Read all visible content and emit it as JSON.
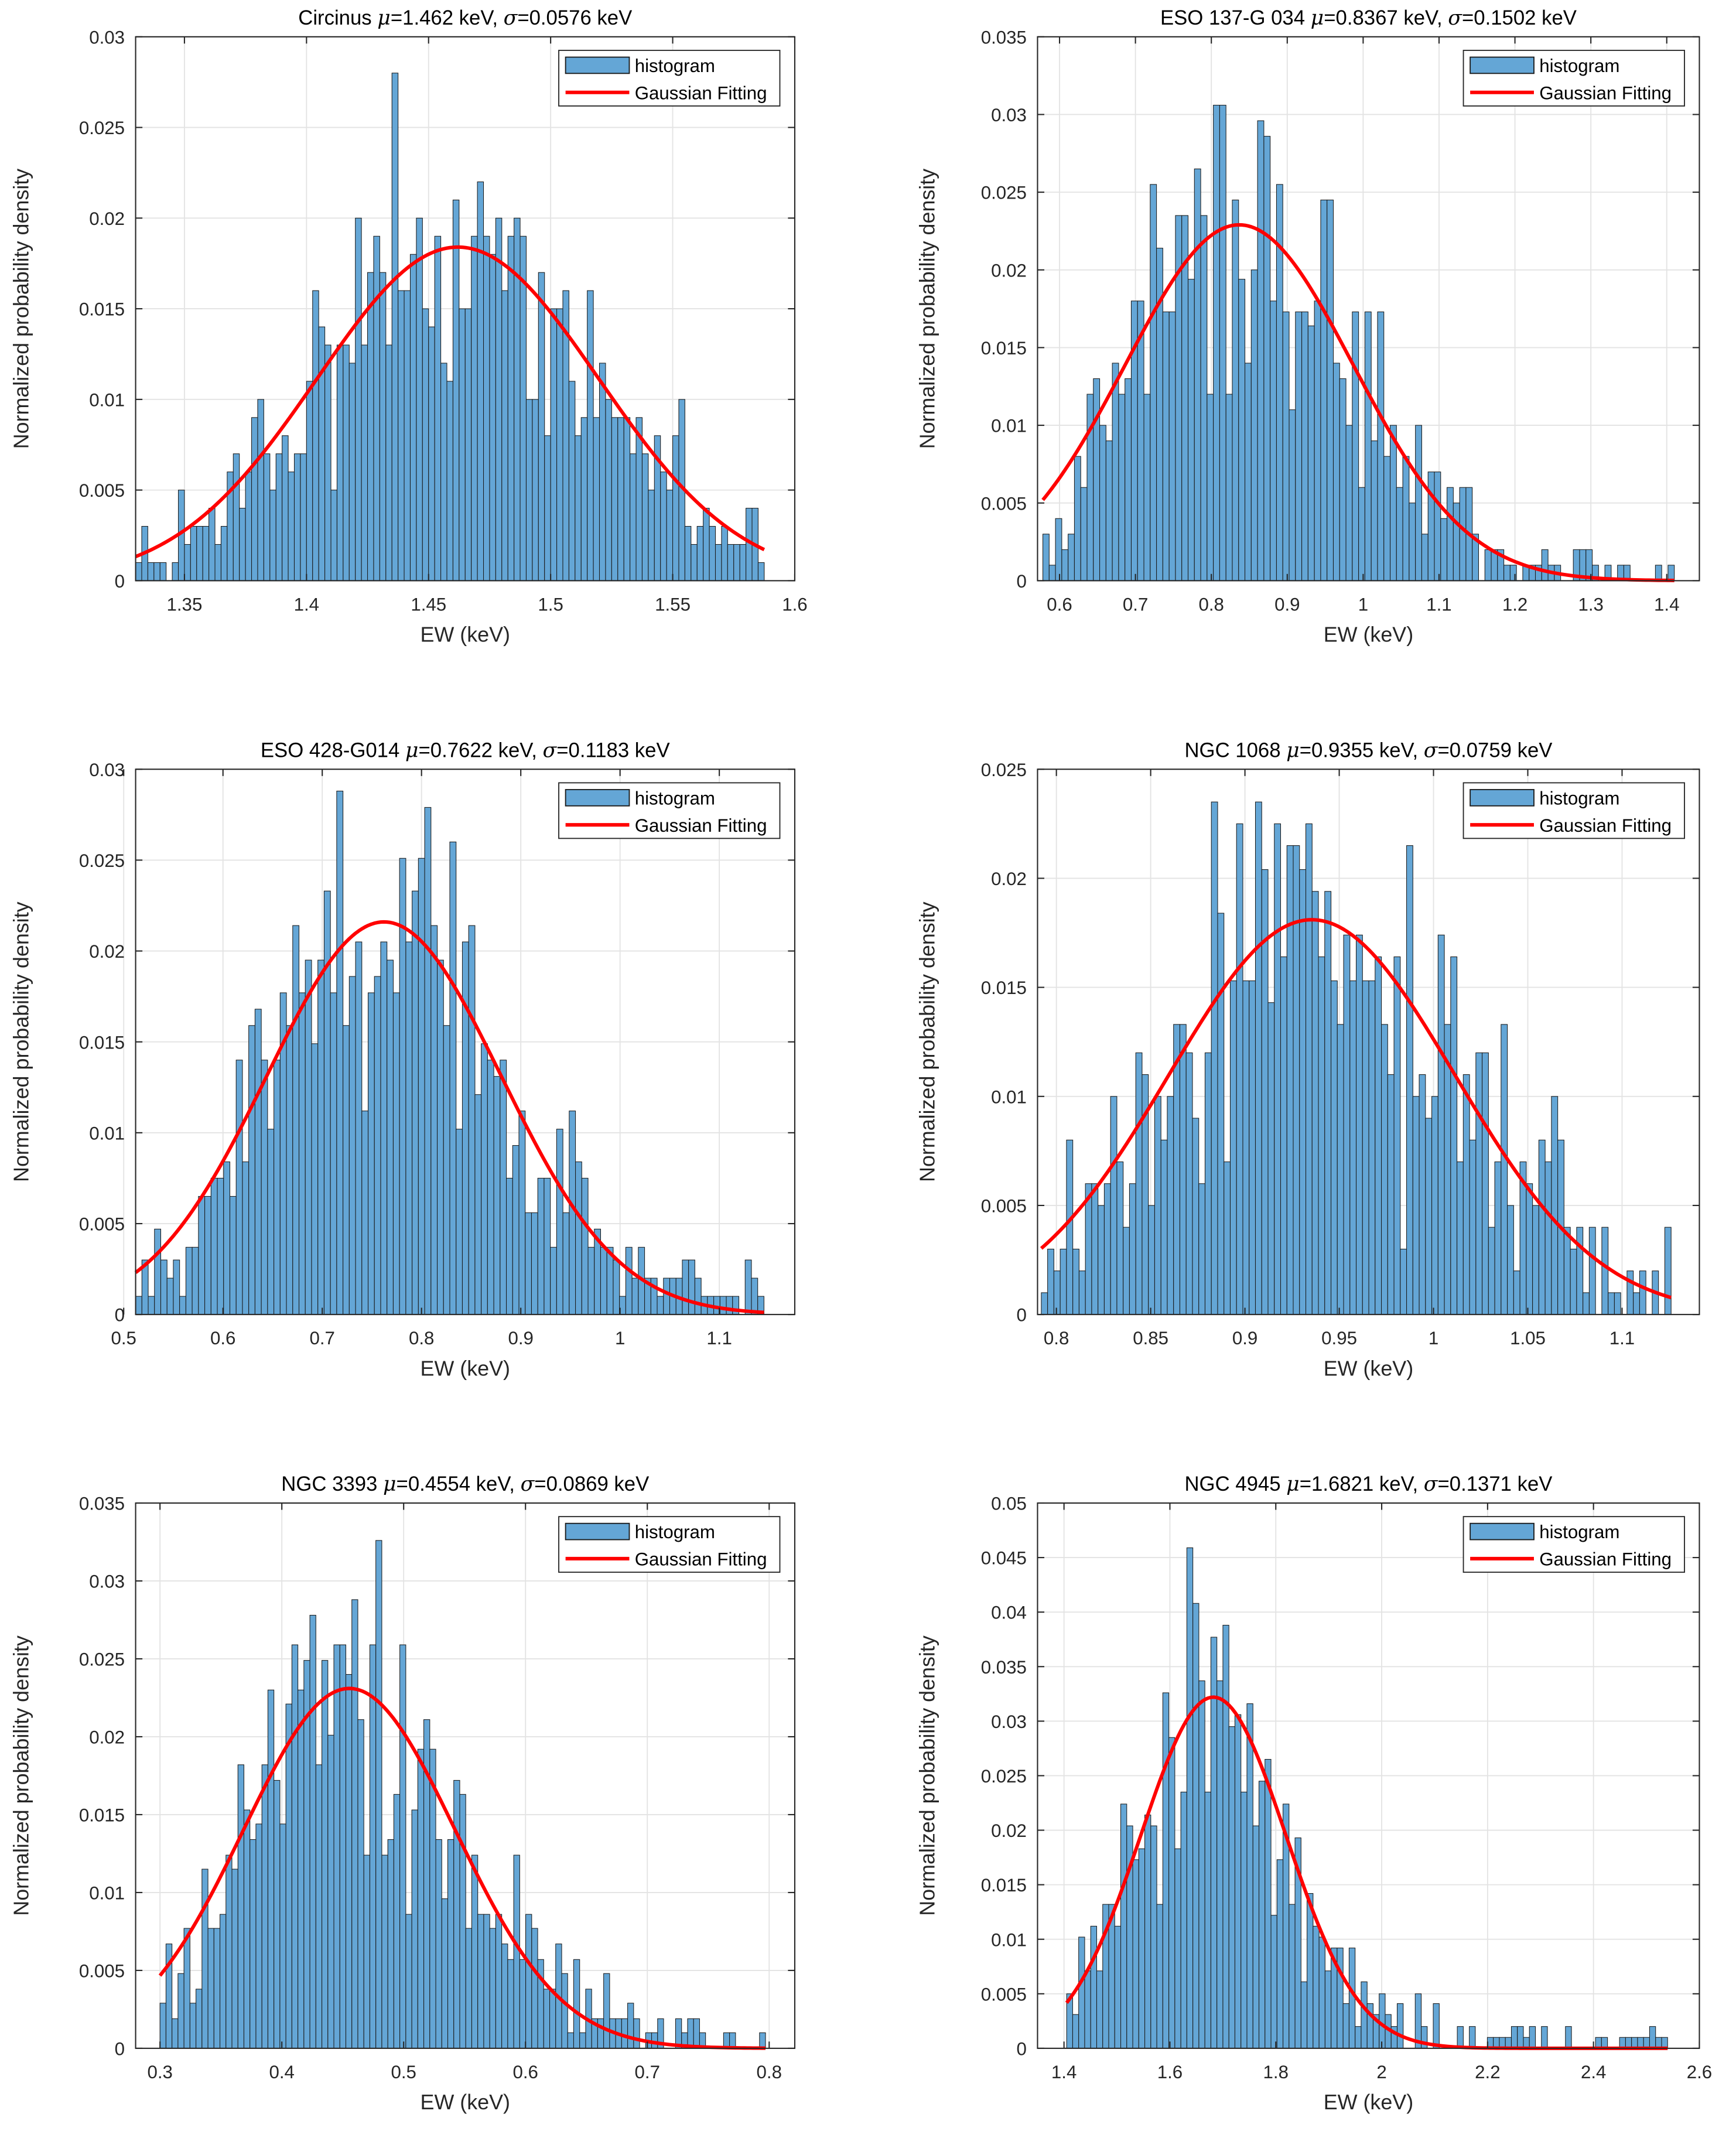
{
  "chart_data": [
    {
      "type": "bar",
      "title_parts": [
        "Circinus ",
        "μ",
        "=1.462 keV, ",
        "σ",
        "=0.0576 keV"
      ],
      "mu": 1.462,
      "sigma": 0.0576,
      "fit_peak": 0.0184,
      "xlabel": "EW (keV)",
      "ylabel": "Normalized probability density",
      "xlim": [
        1.33,
        1.6
      ],
      "ylim": [
        0,
        0.03
      ],
      "xticks": [
        "1.35",
        "1.4",
        "1.45",
        "1.5",
        "1.55",
        "1.6"
      ],
      "yticks": [
        "0",
        "0.005",
        "0.01",
        "0.015",
        "0.02",
        "0.025",
        "0.03"
      ],
      "legend": [
        "histogram",
        "Gaussian Fitting"
      ],
      "legend_position": "top-right",
      "grid": true,
      "bin_start": 1.33,
      "bin_end": 1.5875,
      "values": [
        0.001,
        0.003,
        0.001,
        0.001,
        0.001,
        0,
        0.001,
        0.005,
        0.002,
        0.003,
        0.003,
        0.003,
        0.004,
        0.002,
        0.003,
        0.006,
        0.007,
        0.004,
        0.006,
        0.009,
        0.01,
        0.007,
        0.005,
        0.007,
        0.008,
        0.006,
        0.007,
        0.007,
        0.011,
        0.016,
        0.014,
        0.013,
        0.005,
        0.013,
        0.013,
        0.012,
        0.02,
        0.013,
        0.017,
        0.019,
        0.017,
        0.013,
        0.028,
        0.016,
        0.016,
        0.018,
        0.02,
        0.015,
        0.014,
        0.019,
        0.012,
        0.011,
        0.021,
        0.015,
        0.015,
        0.019,
        0.022,
        0.019,
        0.018,
        0.02,
        0.016,
        0.019,
        0.02,
        0.019,
        0.01,
        0.01,
        0.017,
        0.008,
        0.015,
        0.015,
        0.016,
        0.011,
        0.008,
        0.009,
        0.016,
        0.009,
        0.012,
        0.01,
        0.009,
        0.009,
        0.009,
        0.007,
        0.009,
        0.007,
        0.005,
        0.008,
        0.006,
        0.005,
        0.008,
        0.01,
        0.003,
        0.002,
        0.003,
        0.004,
        0.003,
        0.002,
        0.003,
        0.002,
        0.002,
        0.002,
        0.004,
        0.004,
        0.001
      ]
    },
    {
      "type": "bar",
      "title_parts": [
        "ESO 137-G 034 ",
        "μ",
        "=0.8367 keV, ",
        "σ",
        "=0.1502 keV"
      ],
      "mu": 0.8367,
      "sigma": 0.1502,
      "fit_peak": 0.0229,
      "xlabel": "EW (keV)",
      "ylabel": "Normalized probability density",
      "xlim": [
        0.571,
        1.443
      ],
      "ylim": [
        0,
        0.035
      ],
      "xticks": [
        "0.6",
        "0.7",
        "0.8",
        "0.9",
        "1",
        "1.1",
        "1.2",
        "1.3",
        "1.4"
      ],
      "yticks": [
        "0",
        "0.005",
        "0.01",
        "0.015",
        "0.02",
        "0.025",
        "0.03",
        "0.035"
      ],
      "legend": [
        "histogram",
        "Gaussian Fitting"
      ],
      "legend_position": "top-right",
      "grid": true,
      "bin_start": 0.578,
      "bin_end": 1.41,
      "values": [
        0.003,
        0.001,
        0.004,
        0.002,
        0.003,
        0.008,
        0.006,
        0.012,
        0.013,
        0.01,
        0.009,
        0.014,
        0.012,
        0.013,
        0.018,
        0.018,
        0.012,
        0.0255,
        0.0214,
        0.0173,
        0.0173,
        0.0235,
        0.0235,
        0.0194,
        0.0265,
        0.0235,
        0.012,
        0.0306,
        0.0306,
        0.012,
        0.0245,
        0.0194,
        0.014,
        0.02,
        0.0296,
        0.0286,
        0.018,
        0.0255,
        0.0173,
        0.011,
        0.0173,
        0.0173,
        0.0164,
        0.018,
        0.0245,
        0.0245,
        0.014,
        0.013,
        0.01,
        0.0173,
        0.006,
        0.0173,
        0.009,
        0.0173,
        0.008,
        0.01,
        0.006,
        0.008,
        0.005,
        0.01,
        0.003,
        0.007,
        0.007,
        0.004,
        0.006,
        0.005,
        0.006,
        0.006,
        0.003,
        0,
        0.002,
        0.002,
        0.002,
        0.001,
        0.001,
        0,
        0.001,
        0.001,
        0.001,
        0.002,
        0.001,
        0.001,
        0,
        0,
        0.002,
        0.002,
        0.002,
        0.001,
        0,
        0.001,
        0,
        0.001,
        0.001,
        0,
        0,
        0,
        0,
        0.001,
        0,
        0.001
      ]
    },
    {
      "type": "bar",
      "title_parts": [
        "ESO 428-G014 ",
        "μ",
        "=0.7622 keV, ",
        "σ",
        "=0.1183 keV"
      ],
      "mu": 0.7622,
      "sigma": 0.1183,
      "fit_peak": 0.0216,
      "xlabel": "EW (keV)",
      "ylabel": "Normalized probability density",
      "xlim": [
        0.512,
        1.176
      ],
      "ylim": [
        0,
        0.03
      ],
      "xticks": [
        "0.5",
        "0.6",
        "0.7",
        "0.8",
        "0.9",
        "1",
        "1.1"
      ],
      "yticks": [
        "0",
        "0.005",
        "0.01",
        "0.015",
        "0.02",
        "0.025",
        "0.03"
      ],
      "legend": [
        "histogram",
        "Gaussian Fitting"
      ],
      "legend_position": "top-right",
      "grid": true,
      "bin_start": 0.512,
      "bin_end": 1.145,
      "values": [
        0.001,
        0.003,
        0.001,
        0.0047,
        0.003,
        0.002,
        0.003,
        0.001,
        0.0037,
        0.0037,
        0.0065,
        0.0065,
        0.0075,
        0.0075,
        0.0084,
        0.0065,
        0.014,
        0.0084,
        0.0159,
        0.0168,
        0.014,
        0.0102,
        0.014,
        0.0177,
        0.0159,
        0.0214,
        0.0177,
        0.0195,
        0.0149,
        0.0195,
        0.0233,
        0.0177,
        0.0288,
        0.0159,
        0.0186,
        0.0205,
        0.0112,
        0.0177,
        0.0186,
        0.0205,
        0.0195,
        0.0177,
        0.0251,
        0.0205,
        0.0233,
        0.0251,
        0.0279,
        0.0214,
        0.0195,
        0.0159,
        0.026,
        0.0102,
        0.0205,
        0.0214,
        0.0121,
        0.0149,
        0.014,
        0.0131,
        0.014,
        0.0075,
        0.0093,
        0.0112,
        0.0056,
        0.0056,
        0.0075,
        0.0075,
        0.0037,
        0.0102,
        0.0056,
        0.0112,
        0.0084,
        0.0075,
        0.0037,
        0.0047,
        0.0037,
        0.0037,
        0.003,
        0.001,
        0.0037,
        0.002,
        0.0037,
        0.002,
        0.002,
        0.001,
        0.002,
        0.002,
        0.002,
        0.003,
        0.003,
        0.002,
        0.001,
        0.001,
        0.001,
        0.001,
        0.001,
        0.001,
        0,
        0.003,
        0.002,
        0.001
      ]
    },
    {
      "type": "bar",
      "title_parts": [
        "NGC 1068 ",
        "μ",
        "=0.9355 keV, ",
        "σ",
        "=0.0759 keV"
      ],
      "mu": 0.9355,
      "sigma": 0.0759,
      "fit_peak": 0.0181,
      "xlabel": "EW (keV)",
      "ylabel": "Normalized probability density",
      "xlim": [
        0.79,
        1.141
      ],
      "ylim": [
        0,
        0.025
      ],
      "xticks": [
        "0.8",
        "0.85",
        "0.9",
        "0.95",
        "1",
        "1.05",
        "1.1"
      ],
      "yticks": [
        "0",
        "0.005",
        "0.01",
        "0.015",
        "0.02",
        "0.025"
      ],
      "legend": [
        "histogram",
        "Gaussian Fitting"
      ],
      "legend_position": "top-right",
      "grid": true,
      "bin_start": 0.792,
      "bin_end": 1.126,
      "values": [
        0.001,
        0.003,
        0.002,
        0.003,
        0.008,
        0.003,
        0.002,
        0.006,
        0.006,
        0.005,
        0.006,
        0.01,
        0.007,
        0.004,
        0.006,
        0.012,
        0.011,
        0.005,
        0.01,
        0.008,
        0.01,
        0.0133,
        0.0133,
        0.012,
        0.009,
        0.006,
        0.012,
        0.0235,
        0.0184,
        0.007,
        0.0153,
        0.0225,
        0.0153,
        0.0153,
        0.0235,
        0.0204,
        0.0143,
        0.0225,
        0.0164,
        0.0215,
        0.0215,
        0.0204,
        0.0225,
        0.0194,
        0.0164,
        0.0194,
        0.0153,
        0.0133,
        0.0174,
        0.0153,
        0.0174,
        0.0153,
        0.0153,
        0.0164,
        0.0133,
        0.011,
        0.0164,
        0.003,
        0.0215,
        0.01,
        0.011,
        0.009,
        0.01,
        0.0174,
        0.0133,
        0.0164,
        0.007,
        0.011,
        0.008,
        0.012,
        0.012,
        0.004,
        0.007,
        0.0133,
        0.005,
        0.002,
        0.007,
        0.006,
        0.005,
        0.008,
        0.007,
        0.01,
        0.008,
        0.004,
        0.003,
        0.004,
        0.001,
        0.004,
        0,
        0.004,
        0.001,
        0.001,
        0,
        0.002,
        0.001,
        0.002,
        0,
        0.002,
        0,
        0.004
      ]
    },
    {
      "type": "bar",
      "title_parts": [
        "NGC 3393 ",
        "μ",
        "=0.4554 keV, ",
        "σ",
        "=0.0869 keV"
      ],
      "mu": 0.4554,
      "sigma": 0.0869,
      "fit_peak": 0.0231,
      "xlabel": "EW (keV)",
      "ylabel": "Normalized probability density",
      "xlim": [
        0.28,
        0.821
      ],
      "ylim": [
        0,
        0.035
      ],
      "xticks": [
        "0.3",
        "0.4",
        "0.5",
        "0.6",
        "0.7",
        "0.8"
      ],
      "yticks": [
        "0",
        "0.005",
        "0.01",
        "0.015",
        "0.02",
        "0.025",
        "0.03",
        "0.035"
      ],
      "legend": [
        "histogram",
        "Gaussian Fitting"
      ],
      "legend_position": "top-right",
      "grid": true,
      "bin_start": 0.3,
      "bin_end": 0.797,
      "values": [
        0.0029,
        0.0067,
        0.0019,
        0.0048,
        0.0077,
        0.0029,
        0.0038,
        0.0115,
        0.0077,
        0.0077,
        0.0086,
        0.0124,
        0.0115,
        0.0182,
        0.0153,
        0.0134,
        0.0144,
        0.0182,
        0.023,
        0.0172,
        0.0144,
        0.0221,
        0.0259,
        0.023,
        0.0249,
        0.0278,
        0.0182,
        0.0249,
        0.0201,
        0.0259,
        0.0259,
        0.024,
        0.0288,
        0.0211,
        0.0124,
        0.0259,
        0.0326,
        0.0124,
        0.0134,
        0.0163,
        0.0259,
        0.0086,
        0.0153,
        0.0192,
        0.0211,
        0.0192,
        0.0134,
        0.0096,
        0.0134,
        0.0172,
        0.0163,
        0.0077,
        0.0124,
        0.0086,
        0.0086,
        0.0077,
        0.0086,
        0.0067,
        0.0057,
        0.0124,
        0.0057,
        0.0086,
        0.0077,
        0.0057,
        0.0038,
        0.0038,
        0.0067,
        0.0048,
        0.001,
        0.0057,
        0.001,
        0.0038,
        0.0019,
        0.0019,
        0.0048,
        0.0019,
        0.0019,
        0.0019,
        0.0029,
        0.0019,
        0,
        0.001,
        0.001,
        0.0019,
        0,
        0,
        0.0019,
        0.001,
        0.0019,
        0.0019,
        0.001,
        0,
        0,
        0,
        0.001,
        0.001,
        0,
        0,
        0,
        0,
        0.001
      ]
    },
    {
      "type": "bar",
      "title_parts": [
        "NGC 4945 ",
        "μ",
        "=1.6821 keV, ",
        "σ",
        "=0.1371 keV"
      ],
      "mu": 1.6821,
      "sigma": 0.1371,
      "fit_peak": 0.0322,
      "xlabel": "EW (keV)",
      "ylabel": "Normalized probability density",
      "xlim": [
        1.35,
        2.6
      ],
      "ylim": [
        0,
        0.05
      ],
      "xticks": [
        "1.4",
        "1.6",
        "1.8",
        "2",
        "2.2",
        "2.4",
        "2.6"
      ],
      "yticks": [
        "0",
        "0.005",
        "0.01",
        "0.015",
        "0.02",
        "0.025",
        "0.03",
        "0.035",
        "0.04",
        "0.045",
        "0.05"
      ],
      "legend": [
        "histogram",
        "Gaussian Fitting"
      ],
      "legend_position": "top-right",
      "grid": true,
      "bin_start": 1.405,
      "bin_end": 2.54,
      "values": [
        0.005,
        0.0031,
        0.0102,
        0.0071,
        0.0112,
        0.0071,
        0.0132,
        0.0132,
        0.0112,
        0.0224,
        0.0204,
        0.0173,
        0.0183,
        0.0214,
        0.0204,
        0.0132,
        0.0326,
        0.0285,
        0.0183,
        0.0235,
        0.0459,
        0.0408,
        0.0337,
        0.0235,
        0.0377,
        0.0337,
        0.0388,
        0.0295,
        0.0306,
        0.0235,
        0.0316,
        0.0204,
        0.0245,
        0.0265,
        0.0122,
        0.0173,
        0.0224,
        0.0132,
        0.0193,
        0.0061,
        0.0142,
        0.0112,
        0.0102,
        0.0071,
        0.0092,
        0.0092,
        0.0041,
        0.0092,
        0.002,
        0.0061,
        0.0041,
        0.0031,
        0.005,
        0.0031,
        0.002,
        0.0041,
        0,
        0,
        0.005,
        0.002,
        0,
        0.0041,
        0,
        0,
        0,
        0.002,
        0,
        0.002,
        0,
        0,
        0.001,
        0.001,
        0.001,
        0.001,
        0.002,
        0.002,
        0.001,
        0.002,
        0,
        0.002,
        0,
        0,
        0,
        0.002,
        0,
        0,
        0,
        0,
        0.001,
        0.001,
        0,
        0,
        0.001,
        0.001,
        0.001,
        0.001,
        0.001,
        0.002,
        0.001,
        0.001
      ]
    }
  ],
  "colors": {
    "bar_fill": "#64a6d6",
    "bar_edge": "#1a1a1a",
    "fit_line": "#ff0000",
    "grid": "#e3e3e3"
  }
}
